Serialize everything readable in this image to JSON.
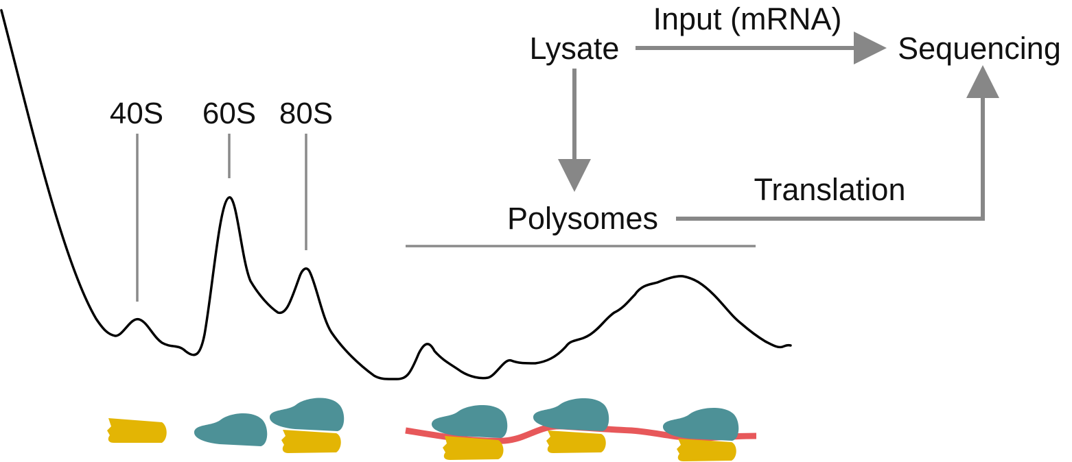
{
  "peaks": {
    "s40": "40S",
    "s60": "60S",
    "s80": "80S"
  },
  "workflow": {
    "lysate": "Lysate",
    "input": "Input (mRNA)",
    "sequencing": "Sequencing",
    "polysomes": "Polysomes",
    "translation": "Translation"
  },
  "colors": {
    "trace": "#000000",
    "arrow": "#878787",
    "marker": "#8a8a8a",
    "large_subunit": "#4d9197",
    "small_subunit": "#e3b504",
    "mrna": "#e7585a"
  }
}
